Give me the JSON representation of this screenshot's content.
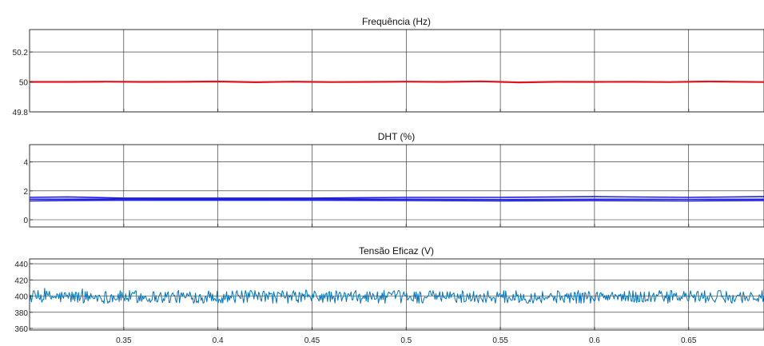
{
  "chart_data": [
    {
      "type": "line",
      "title": "Frequência (Hz)",
      "xlim": [
        0.3,
        0.69
      ],
      "ylim": [
        49.8,
        50.35
      ],
      "xticks": [
        0.35,
        0.4,
        0.45,
        0.5,
        0.55,
        0.6,
        0.65
      ],
      "xticklabels": [
        "",
        "",
        "",
        "",
        "",
        "",
        ""
      ],
      "yticks": [
        49.8,
        50,
        50.2
      ],
      "yticklabels": [
        "49.8",
        "50",
        "50.2"
      ],
      "grid": true,
      "series": [
        {
          "color": "#e0141e",
          "width": 2.2,
          "x": [
            0.3,
            0.32,
            0.34,
            0.36,
            0.38,
            0.4,
            0.42,
            0.44,
            0.46,
            0.48,
            0.5,
            0.52,
            0.54,
            0.56,
            0.58,
            0.6,
            0.62,
            0.64,
            0.66,
            0.69
          ],
          "y": [
            50.0,
            50.0,
            50.002,
            50.0,
            50.001,
            50.003,
            49.998,
            50.002,
            49.999,
            50.0,
            50.002,
            50.0,
            50.004,
            49.997,
            50.001,
            50.0,
            50.001,
            49.999,
            50.003,
            49.999
          ]
        }
      ]
    },
    {
      "type": "line",
      "title": "DHT (%)",
      "xlim": [
        0.3,
        0.69
      ],
      "ylim": [
        -0.5,
        5.2
      ],
      "xticks": [
        0.35,
        0.4,
        0.45,
        0.5,
        0.55,
        0.6,
        0.65
      ],
      "xticklabels": [
        "",
        "",
        "",
        "",
        "",
        "",
        ""
      ],
      "yticks": [
        0,
        2,
        4
      ],
      "yticklabels": [
        "0",
        "2",
        "4"
      ],
      "grid": true,
      "series": [
        {
          "color": "#1f1fe0",
          "width": 1.6,
          "x": [
            0.3,
            0.32,
            0.35,
            0.4,
            0.45,
            0.5,
            0.55,
            0.6,
            0.65,
            0.69
          ],
          "y": [
            1.55,
            1.58,
            1.5,
            1.5,
            1.5,
            1.55,
            1.55,
            1.6,
            1.55,
            1.6
          ]
        },
        {
          "color": "#1f1fe0",
          "width": 1.6,
          "x": [
            0.3,
            0.32,
            0.35,
            0.4,
            0.45,
            0.5,
            0.55,
            0.6,
            0.65,
            0.69
          ],
          "y": [
            1.42,
            1.42,
            1.43,
            1.42,
            1.43,
            1.42,
            1.4,
            1.42,
            1.41,
            1.42
          ]
        },
        {
          "color": "#1f1fe0",
          "width": 1.6,
          "x": [
            0.3,
            0.32,
            0.35,
            0.4,
            0.45,
            0.5,
            0.55,
            0.6,
            0.65,
            0.69
          ],
          "y": [
            1.3,
            1.33,
            1.35,
            1.35,
            1.35,
            1.33,
            1.3,
            1.32,
            1.3,
            1.33
          ]
        }
      ]
    },
    {
      "type": "line",
      "title": "Tensão Eficaz (V)",
      "xlim": [
        0.3,
        0.69
      ],
      "ylim": [
        358,
        446
      ],
      "xticks": [
        0.35,
        0.4,
        0.45,
        0.5,
        0.55,
        0.6,
        0.65
      ],
      "xticklabels": [
        "0.35",
        "0.4",
        "0.45",
        "0.5",
        "0.55",
        "0.6",
        "0.65"
      ],
      "yticks": [
        360,
        380,
        400,
        420,
        440
      ],
      "yticklabels": [
        "360",
        "380",
        "400",
        "420",
        "440"
      ],
      "grid": true,
      "series": [
        {
          "color": "#0072bd",
          "width": 1,
          "noise": {
            "mean": 399,
            "amplitude": 8,
            "count": 780
          }
        }
      ]
    }
  ]
}
